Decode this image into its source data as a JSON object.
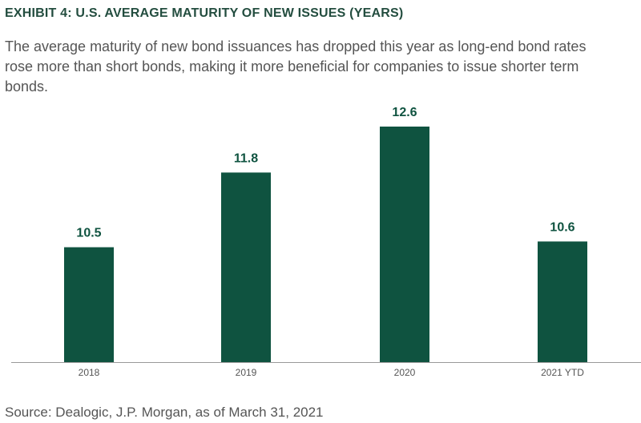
{
  "title": "EXHIBIT 4: U.S. AVERAGE MATURITY OF NEW ISSUES (YEARS)",
  "subtitle": "The average maturity of new bond issuances has dropped this year as long-end bond rates rose more than short bonds, making it more beneficial for companies to issue shorter term bonds.",
  "source": "Source: Dealogic, J.P. Morgan, as of March 31, 2021",
  "colors": {
    "bar": "#0f5340",
    "label": "#0f5340",
    "axis": "#999999",
    "tick_label": "#555555"
  },
  "chart_data": {
    "type": "bar",
    "categories": [
      "2018",
      "2019",
      "2020",
      "2021 YTD"
    ],
    "values": [
      10.5,
      11.8,
      12.6,
      10.6
    ],
    "data_labels": [
      "10.5",
      "11.8",
      "12.6",
      "10.6"
    ],
    "ylim": [
      8.5,
      12.6
    ],
    "grid": false,
    "legend": "none"
  }
}
